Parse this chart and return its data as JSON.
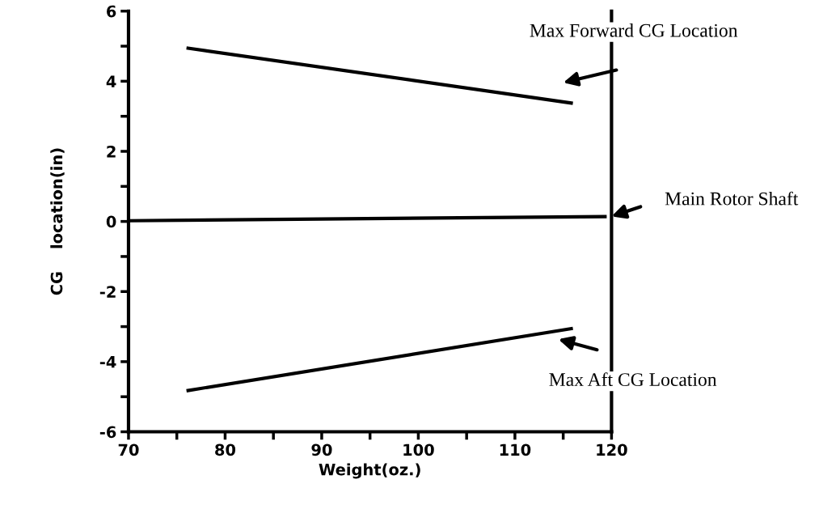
{
  "chart_data": {
    "type": "line",
    "xlabel": "Weight(oz.)",
    "ylabel": "CG    location(in)",
    "series": [
      {
        "color": "#000000",
        "x": [
          76,
          116
        ],
        "values": [
          4.95,
          3.37
        ]
      },
      {
        "color": "#000000",
        "x": [
          70,
          119.5
        ],
        "values": [
          0.02,
          0.14
        ]
      },
      {
        "color": "#000000",
        "x": [
          76,
          116
        ],
        "values": [
          -4.83,
          -3.05
        ]
      }
    ],
    "xlim": [
      70,
      120
    ],
    "ylim": [
      -6,
      6
    ],
    "xticks": [
      70,
      {
        "value": 75,
        "label": null
      },
      80,
      {
        "value": 85,
        "label": null
      },
      90,
      {
        "value": 95,
        "label": null
      },
      100,
      {
        "value": 105,
        "label": null
      },
      110,
      {
        "value": 115,
        "label": null
      },
      120
    ],
    "yticks": [
      -6,
      {
        "value": -5,
        "label": null
      },
      -4,
      {
        "value": -3,
        "label": null
      },
      -2,
      {
        "value": -1,
        "label": null
      },
      0,
      {
        "value": 1,
        "label": null
      },
      2,
      {
        "value": 3,
        "label": null
      },
      4,
      {
        "value": 5,
        "label": null
      },
      6
    ],
    "grid": false,
    "legend": false,
    "marker": "none",
    "line_style": "solid",
    "annotations": [
      "Max Forward CG Location",
      "Main Rotor Shaft",
      "Max Aft CG Location"
    ]
  }
}
